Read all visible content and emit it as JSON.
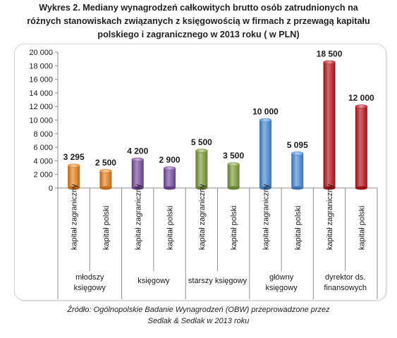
{
  "title": {
    "line1": "Wykres 2. Mediany wynagrodzeń całkowitych brutto osób zatrudnionych na",
    "line2": "różnych stanowiskach związanych z księgowością w firmach z przewagą kapitału",
    "line3": "polskiego i zagranicznego w 2013 roku ( w PLN)"
  },
  "source": {
    "line1": "Źródło: Ogólnopolskie Badanie Wynagrodzeń (OBW) przeprowadzone przez",
    "line2": "Sedlak & Sedlak w 2013 roku"
  },
  "chart_data": {
    "type": "bar",
    "title": "Wykres 2. Mediany wynagrodzeń całkowitych brutto osób zatrudnionych na różnych stanowiskach związanych z księgowością w firmach z przewagą kapitału polskiego i zagranicznego w 2013 roku ( w PLN)",
    "ylim": [
      0,
      20000
    ],
    "yticks": [
      "0",
      "2 000",
      "4 000",
      "6 000",
      "8 000",
      "10 000",
      "12 000",
      "14 000",
      "16 000",
      "18 000",
      "20 000"
    ],
    "ytick_values": [
      0,
      2000,
      4000,
      6000,
      8000,
      10000,
      12000,
      14000,
      16000,
      18000,
      20000
    ],
    "grid": false,
    "groups": [
      {
        "label_lines": [
          "młodszy",
          "księgowy"
        ],
        "color": "#F0861E",
        "bars": [
          {
            "category": "kapitał zagraniczny",
            "value": 3295,
            "label": "3 295"
          },
          {
            "category": "kapitał polski",
            "value": 2500,
            "label": "2 500"
          }
        ]
      },
      {
        "label_lines": [
          "księgowy"
        ],
        "color": "#7E4FA6",
        "bars": [
          {
            "category": "kapitał zagraniczny",
            "value": 4200,
            "label": "4 200"
          },
          {
            "category": "kapitał polski",
            "value": 2900,
            "label": "2 900"
          }
        ]
      },
      {
        "label_lines": [
          "starszy księgowy"
        ],
        "color": "#7FA23A",
        "bars": [
          {
            "category": "kapitał zagraniczny",
            "value": 5500,
            "label": "5 500"
          },
          {
            "category": "kapitał polski",
            "value": 3500,
            "label": "3 500"
          }
        ]
      },
      {
        "label_lines": [
          "główny",
          "księgowy"
        ],
        "color": "#4A8FDC",
        "bars": [
          {
            "category": "kapitał zagraniczny",
            "value": 10000,
            "label": "10 000"
          },
          {
            "category": "kapitał polski",
            "value": 5095,
            "label": "5 095"
          }
        ]
      },
      {
        "label_lines": [
          "dyrektor ds.",
          "finansowych"
        ],
        "color": "#C0141C",
        "bars": [
          {
            "category": "kapitał zagraniczny",
            "value": 18500,
            "label": "18 500"
          },
          {
            "category": "kapitał polski",
            "value": 12000,
            "label": "12 000"
          }
        ]
      }
    ]
  }
}
